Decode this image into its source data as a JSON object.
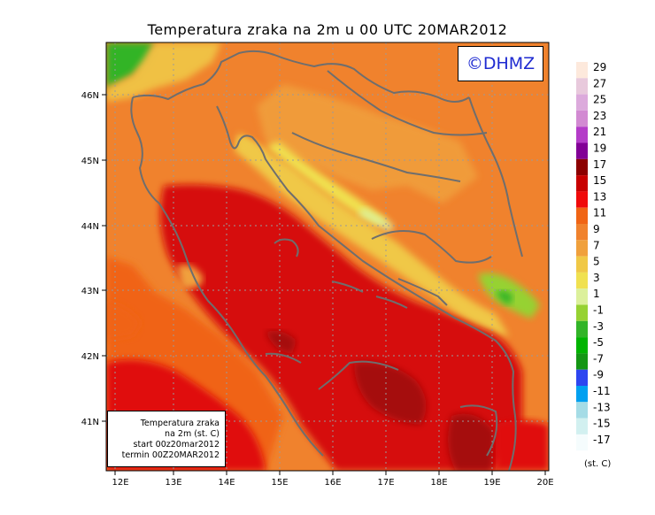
{
  "title": "Temperatura zraka na 2m u 00 UTC 20MAR2012",
  "logo_text": "©DHMZ",
  "info_box": {
    "line1": "Temperatura zraka",
    "line2": "na 2m (st. C)",
    "line3": "start 00z20mar2012",
    "line4": "termin 00Z20MAR2012"
  },
  "unit_label": "(st. C)",
  "axes": {
    "lon_labels": [
      "12E",
      "13E",
      "14E",
      "15E",
      "16E",
      "17E",
      "18E",
      "19E",
      "20E"
    ],
    "lat_labels": [
      "46N",
      "45N",
      "44N",
      "43N",
      "42N",
      "41N"
    ]
  },
  "legend": {
    "labels": [
      "29",
      "27",
      "25",
      "23",
      "21",
      "19",
      "17",
      "15",
      "13",
      "11",
      "9",
      "7",
      "5",
      "3",
      "1",
      "-1",
      "-3",
      "-5",
      "-7",
      "-9",
      "-11",
      "-13",
      "-15",
      "-17"
    ],
    "colors": [
      "#fde9dc",
      "#e8c9dc",
      "#dcaadc",
      "#d28ad2",
      "#b43cc8",
      "#820096",
      "#8c0000",
      "#c80000",
      "#f00a0a",
      "#f06414",
      "#f0822d",
      "#f0a03c",
      "#f0c846",
      "#f0e150",
      "#dcf09b",
      "#96d232",
      "#32b428",
      "#00b400",
      "#149614",
      "#2d46f0",
      "#00a0f0",
      "#a5dce6",
      "#d2f0f0",
      "#f5fcfd"
    ]
  },
  "colors": {
    "sea_warm": "#d60a0a",
    "sea_dark": "#a50a0a",
    "coast_line": "#6e6e6e"
  }
}
